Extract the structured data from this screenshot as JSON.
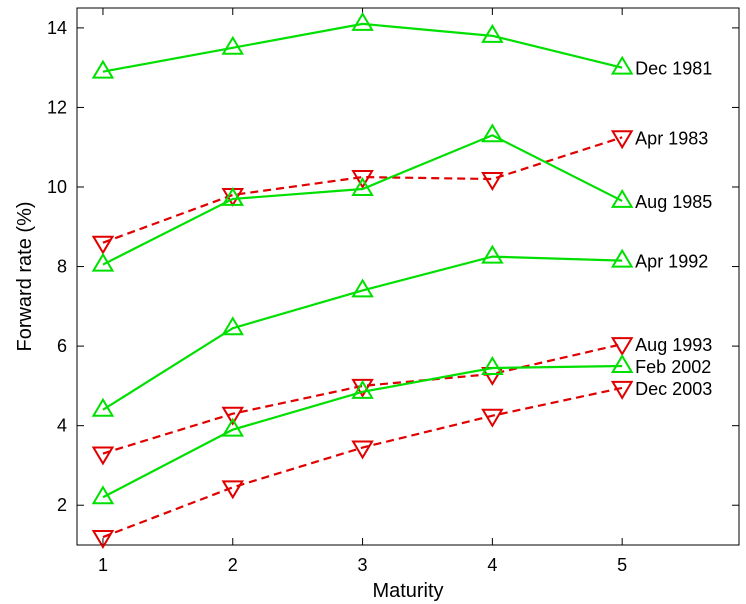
{
  "chart_data": {
    "type": "line",
    "title": "",
    "xlabel": "Maturity",
    "ylabel": "Forward rate (%)",
    "xlim": [
      0.8,
      5.9
    ],
    "ylim": [
      1,
      14.5
    ],
    "x_ticks": [
      "1",
      "2",
      "3",
      "4",
      "5"
    ],
    "y_ticks": [
      "2",
      "4",
      "6",
      "8",
      "10",
      "12",
      "14"
    ],
    "grid": false,
    "legend": "none",
    "x": [
      1,
      2,
      3,
      4,
      5
    ],
    "series": [
      {
        "name": "Dec 1981",
        "marker": "triangle-up",
        "style": "solid",
        "color": "#00e000",
        "values": [
          12.9,
          13.5,
          14.1,
          13.8,
          13.0
        ]
      },
      {
        "name": "Apr 1983",
        "marker": "triangle-down",
        "style": "dashed",
        "color": "#e00000",
        "values": [
          8.6,
          9.8,
          10.25,
          10.2,
          11.25
        ]
      },
      {
        "name": "Aug 1985",
        "marker": "triangle-up",
        "style": "solid",
        "color": "#00e000",
        "values": [
          8.05,
          9.7,
          9.95,
          11.3,
          9.65
        ]
      },
      {
        "name": "Apr 1992",
        "marker": "triangle-up",
        "style": "solid",
        "color": "#00e000",
        "values": [
          4.4,
          6.45,
          7.4,
          8.25,
          8.15
        ]
      },
      {
        "name": "Aug 1993",
        "marker": "triangle-down",
        "style": "dashed",
        "color": "#e00000",
        "values": [
          3.3,
          4.3,
          5.0,
          5.3,
          6.05
        ]
      },
      {
        "name": "Feb 2002",
        "marker": "triangle-up",
        "style": "solid",
        "color": "#00e000",
        "values": [
          2.2,
          3.9,
          4.85,
          5.45,
          5.5
        ]
      },
      {
        "name": "Dec 2003",
        "marker": "triangle-down",
        "style": "dashed",
        "color": "#e00000",
        "values": [
          1.2,
          2.45,
          3.45,
          4.25,
          4.95
        ]
      }
    ]
  }
}
